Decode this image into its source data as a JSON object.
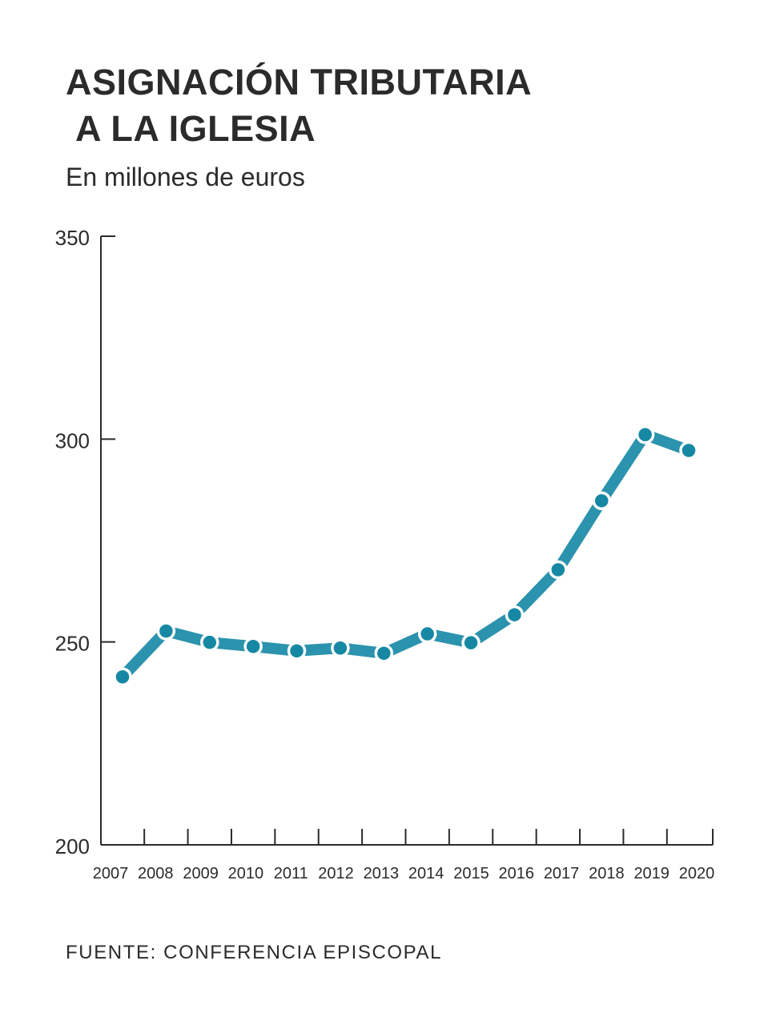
{
  "header": {
    "title_line1": "ASIGNACIÓN TRIBUTARIA",
    "title_line2": "A LA IGLESIA",
    "subtitle": "En millones de euros"
  },
  "footer": {
    "source": "FUENTE: CONFERENCIA EPISCOPAL"
  },
  "colors": {
    "line": "#2b93ad",
    "axis": "#2b2b2b",
    "marker": "#1688a3",
    "marker_outline": "#ffffff"
  },
  "chart_data": {
    "type": "line",
    "title": "ASIGNACIÓN TRIBUTARIA A LA IGLESIA",
    "subtitle": "En millones de euros",
    "x": [
      "2007",
      "2008",
      "2009",
      "2010",
      "2011",
      "2012",
      "2013",
      "2014",
      "2015",
      "2016",
      "2017",
      "2018",
      "2019",
      "2020"
    ],
    "series": [
      {
        "values": [
          241.4,
          252.7,
          249.9,
          248.9,
          247.8,
          248.5,
          247.2,
          252.0,
          249.8,
          256.7,
          267.8,
          284.8,
          301.1,
          297.2
        ]
      }
    ],
    "ylim": [
      200,
      350
    ],
    "yticks": [
      200,
      250,
      300,
      350
    ],
    "grid": false,
    "legend": "none"
  }
}
